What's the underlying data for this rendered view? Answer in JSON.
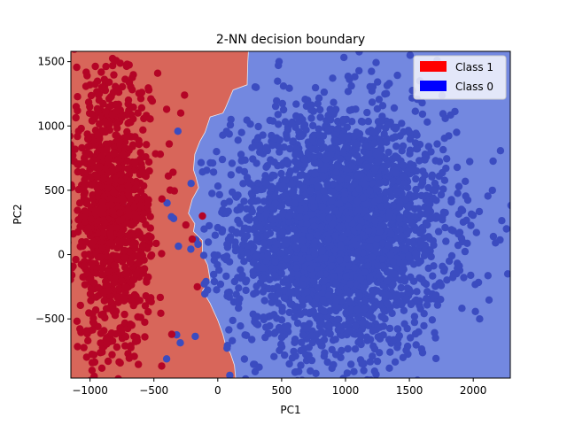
{
  "chart_data": {
    "type": "scatter",
    "title": "2-NN decision boundary",
    "xlabel": "PC1",
    "ylabel": "PC2",
    "xlim": [
      -1150,
      2290
    ],
    "ylim": [
      -960,
      1580
    ],
    "xticks": [
      -1000,
      -500,
      0,
      500,
      1000,
      1500,
      2000
    ],
    "yticks": [
      -500,
      0,
      500,
      1000,
      1500
    ],
    "xtick_labels": [
      "−1000",
      "−500",
      "0",
      "500",
      "1000",
      "1500",
      "2000"
    ],
    "ytick_labels": [
      "−500",
      "0",
      "500",
      "1000",
      "1500"
    ],
    "legend_position": "top-right",
    "legend": [
      {
        "label": "Class 1",
        "color": "#ff0000"
      },
      {
        "label": "Class 0",
        "color": "#0000ff"
      }
    ],
    "region_colors": {
      "class_1": "#d8665a",
      "class_0": "#7388e0"
    },
    "point_colors": {
      "class_1": "#b40426",
      "class_0": "#3b4cc0"
    },
    "decision_boundary": {
      "x": [
        240,
        235,
        230,
        120,
        60,
        40,
        -60,
        -100,
        -140,
        -180,
        -190,
        -170,
        -150,
        -200,
        -230,
        -180,
        -190,
        -120,
        -120,
        -80,
        -60,
        -120,
        -60,
        0,
        40,
        60,
        100,
        130,
        140
      ],
      "y": [
        1580,
        1500,
        1320,
        1280,
        1140,
        1100,
        1070,
        950,
        880,
        780,
        660,
        600,
        520,
        430,
        320,
        240,
        180,
        110,
        0,
        -80,
        -200,
        -280,
        -380,
        -510,
        -620,
        -700,
        -770,
        -860,
        -960
      ]
    },
    "series": [
      {
        "name": "Class 1",
        "cluster": {
          "x_mean": -830,
          "x_sd": 150,
          "y_mean": 300,
          "y_sd": 560,
          "count": 1100
        },
        "outliers": {
          "x": [
            -470,
            -260,
            -400,
            -290,
            -380,
            -450,
            -350,
            -540,
            -120,
            -160,
            -250,
            -200,
            -360
          ],
          "y": [
            1410,
            1240,
            1130,
            1100,
            860,
            780,
            640,
            1280,
            300,
            -250,
            230,
            120,
            -620
          ]
        }
      },
      {
        "name": "Class 0",
        "cluster": {
          "x_mean": 950,
          "x_sd": 420,
          "y_mean": 180,
          "y_sd": 470,
          "count": 3000
        },
        "outliers": {
          "x": [
            480,
            300,
            1600,
            1870,
            2150,
            2260,
            2270,
            2050,
            1450,
            1250,
            560,
            -20,
            140,
            90,
            230
          ],
          "y": [
            1500,
            1300,
            1180,
            950,
            500,
            200,
            -150,
            -500,
            -800,
            -830,
            -850,
            150,
            30,
            -330,
            600
          ]
        }
      }
    ]
  }
}
